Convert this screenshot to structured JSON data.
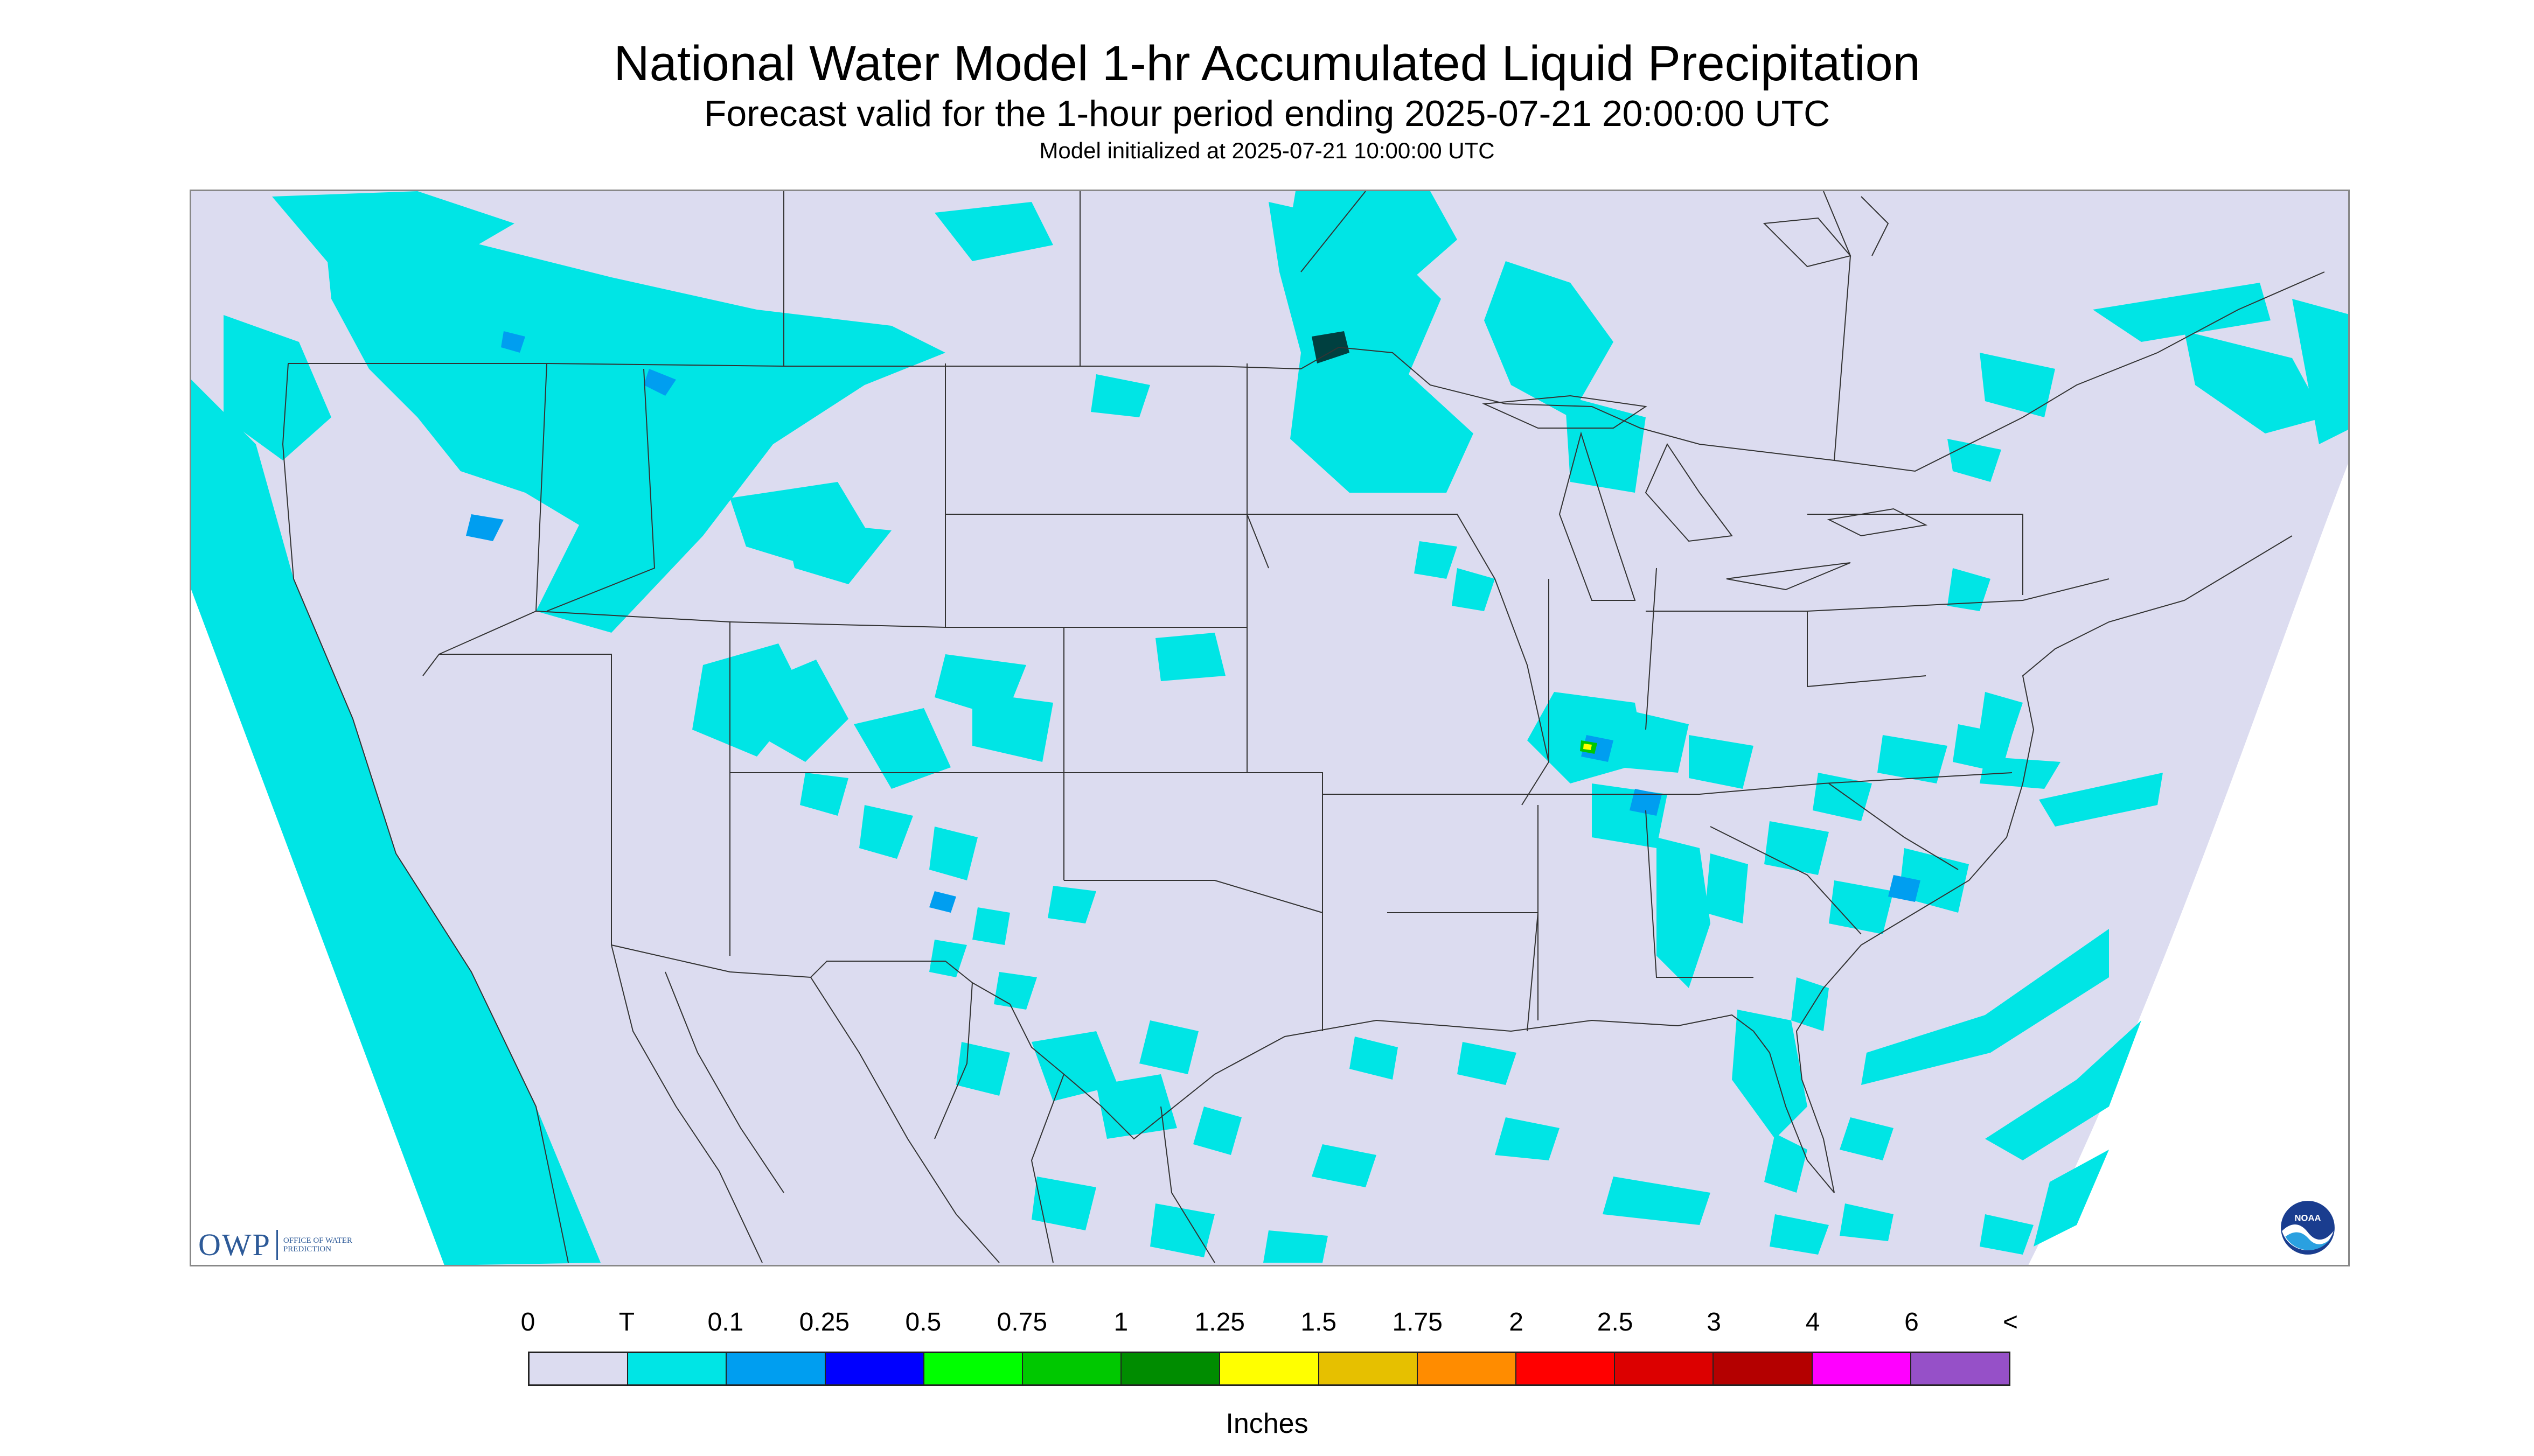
{
  "title": "National Water Model 1-hr Accumulated Liquid Precipitation",
  "subtitle": "Forecast valid for the 1-hour period ending 2025-07-21 20:00:00 UTC",
  "init_line": "Model initialized at 2025-07-21 10:00:00 UTC",
  "logos": {
    "owp_mark": "OWP",
    "owp_text": "OFFICE OF WATER PREDICTION",
    "noaa_text": "NOAA"
  },
  "colors": {
    "no_data_background": "#dcdcf0",
    "trace": "#00e5e5",
    "state_lines": "#333333"
  },
  "legend": {
    "labels": [
      "0",
      "T",
      "0.1",
      "0.25",
      "0.5",
      "0.75",
      "1",
      "1.25",
      "1.5",
      "1.75",
      "2",
      "2.5",
      "3",
      "4",
      "6",
      "<"
    ],
    "colors": [
      "#dcdcf0",
      "#00e5e5",
      "#009ef0",
      "#0000ff",
      "#00ff00",
      "#00c800",
      "#008c00",
      "#ffff00",
      "#e6c000",
      "#ff8c00",
      "#ff0000",
      "#dc0000",
      "#b40000",
      "#ff00ff",
      "#9650c8"
    ],
    "units": "Inches"
  }
}
